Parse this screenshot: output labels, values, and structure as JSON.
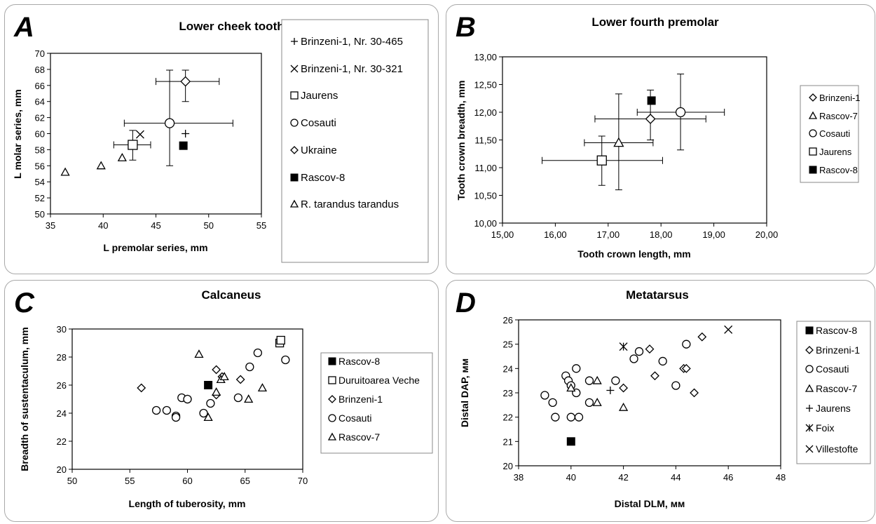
{
  "chart_data": [
    {
      "type": "scatter",
      "panel_letter": "A",
      "title": "Lower cheek tooth row",
      "xlabel": "L premolar series, mm",
      "ylabel": "L molar series, mm",
      "xlim": [
        35,
        55
      ],
      "ylim": [
        50,
        70
      ],
      "x_ticks": [
        "35",
        "40",
        "45",
        "50",
        "55"
      ],
      "y_ticks": [
        "50",
        "52",
        "54",
        "56",
        "58",
        "60",
        "62",
        "64",
        "66",
        "68",
        "70"
      ],
      "grid": false,
      "legend_position": "right",
      "series": [
        {
          "name": "Brinzeni-1, Nr. 30-465",
          "marker": "plus",
          "points": [
            [
              47.8,
              60.0
            ]
          ]
        },
        {
          "name": "Brinzeni-1, Nr. 30-321",
          "marker": "x",
          "points": [
            [
              43.5,
              59.9
            ]
          ]
        },
        {
          "name": "Jaurens",
          "marker": "square-open",
          "points": [
            [
              42.8,
              58.6
            ]
          ],
          "xerr": [
            [
              41.0,
              44.5
            ]
          ],
          "yerr": [
            [
              56.7,
              60.4
            ]
          ]
        },
        {
          "name": "Cosauti",
          "marker": "circle-open",
          "points": [
            [
              46.3,
              61.3
            ]
          ],
          "xerr": [
            [
              42.0,
              52.3
            ]
          ],
          "yerr": [
            [
              56.0,
              67.9
            ]
          ]
        },
        {
          "name": "Ukraine",
          "marker": "diamond-open",
          "points": [
            [
              47.8,
              66.5
            ]
          ],
          "xerr": [
            [
              45.0,
              51.0
            ]
          ],
          "yerr": [
            [
              64.0,
              67.9
            ]
          ]
        },
        {
          "name": "Rascov-8",
          "marker": "square-filled",
          "points": [
            [
              47.6,
              58.5
            ]
          ]
        },
        {
          "name": "R. tarandus tarandus",
          "marker": "triangle-open",
          "points": [
            [
              36.4,
              55.2
            ],
            [
              39.8,
              56.0
            ],
            [
              41.8,
              57.0
            ]
          ]
        }
      ]
    },
    {
      "type": "scatter",
      "panel_letter": "B",
      "title": "Lower fourth premolar",
      "xlabel": "Tooth crown length, mm",
      "ylabel": "Tooth crown breadth, mm",
      "xlim": [
        15,
        20
      ],
      "ylim": [
        10,
        13
      ],
      "x_ticks": [
        "15,00",
        "16,00",
        "17,00",
        "18,00",
        "19,00",
        "20,00"
      ],
      "y_ticks": [
        "10,00",
        "10,50",
        "11,00",
        "11,50",
        "12,00",
        "12,50",
        "13,00"
      ],
      "grid": false,
      "legend_position": "right",
      "series": [
        {
          "name": "Brinzeni-1",
          "marker": "diamond-open",
          "points": [
            [
              17.8,
              11.88
            ]
          ],
          "xerr": [
            [
              16.75,
              18.85
            ]
          ],
          "yerr": [
            [
              11.5,
              12.4
            ]
          ]
        },
        {
          "name": "Rascov-7",
          "marker": "triangle-open",
          "points": [
            [
              17.2,
              11.45
            ]
          ],
          "xerr": [
            [
              16.55,
              17.85
            ]
          ],
          "yerr": [
            [
              10.6,
              12.33
            ]
          ]
        },
        {
          "name": "Cosauti",
          "marker": "circle-open",
          "points": [
            [
              18.37,
              12.0
            ]
          ],
          "xerr": [
            [
              17.55,
              19.2
            ]
          ],
          "yerr": [
            [
              11.32,
              12.69
            ]
          ]
        },
        {
          "name": "Jaurens",
          "marker": "square-open",
          "points": [
            [
              16.88,
              11.13
            ]
          ],
          "xerr": [
            [
              15.75,
              18.03
            ]
          ],
          "yerr": [
            [
              10.68,
              11.57
            ]
          ]
        },
        {
          "name": "Rascov-8",
          "marker": "square-filled",
          "points": [
            [
              17.82,
              12.21
            ]
          ]
        }
      ]
    },
    {
      "type": "scatter",
      "panel_letter": "C",
      "title": "Calcaneus",
      "xlabel": "Length of tuberosity, mm",
      "ylabel": "Breadth of sustentaculum, mm",
      "xlim": [
        50,
        70
      ],
      "ylim": [
        20,
        30
      ],
      "x_ticks": [
        "50",
        "55",
        "60",
        "65",
        "70"
      ],
      "y_ticks": [
        "20",
        "22",
        "24",
        "26",
        "28",
        "30"
      ],
      "grid": false,
      "legend_position": "right",
      "series": [
        {
          "name": "Rascov-8",
          "marker": "square-filled",
          "points": [
            [
              61.8,
              26.0
            ]
          ]
        },
        {
          "name": "Duruitoarea Veche",
          "marker": "square-open",
          "points": [
            [
              68.0,
              29.0
            ],
            [
              68.1,
              29.2
            ]
          ]
        },
        {
          "name": "Brinzeni-1",
          "marker": "diamond-open",
          "points": [
            [
              56.0,
              25.8
            ],
            [
              60.0,
              25.0
            ],
            [
              62.5,
              25.3
            ],
            [
              62.5,
              27.1
            ],
            [
              63.0,
              26.6
            ],
            [
              64.6,
              26.4
            ]
          ]
        },
        {
          "name": "Cosauti",
          "marker": "circle-open",
          "points": [
            [
              57.3,
              24.2
            ],
            [
              58.2,
              24.2
            ],
            [
              59.0,
              23.8
            ],
            [
              59.0,
              23.7
            ],
            [
              59.5,
              25.1
            ],
            [
              60.0,
              25.0
            ],
            [
              61.4,
              24.0
            ],
            [
              62.0,
              24.7
            ],
            [
              64.4,
              25.1
            ],
            [
              65.4,
              27.3
            ],
            [
              66.1,
              28.3
            ],
            [
              68.5,
              27.8
            ]
          ]
        },
        {
          "name": "Rascov-7",
          "marker": "triangle-open",
          "points": [
            [
              61.0,
              28.2
            ],
            [
              61.8,
              23.7
            ],
            [
              62.5,
              25.5
            ],
            [
              62.9,
              26.4
            ],
            [
              63.2,
              26.6
            ],
            [
              65.3,
              25.0
            ],
            [
              66.5,
              25.8
            ]
          ]
        }
      ]
    },
    {
      "type": "scatter",
      "panel_letter": "D",
      "title": "Metatarsus",
      "xlabel": "Distal DLM, мм",
      "ylabel": "Distal DAP, мм",
      "xlim": [
        38,
        48
      ],
      "ylim": [
        20,
        26
      ],
      "x_ticks": [
        "38",
        "40",
        "42",
        "44",
        "46",
        "48"
      ],
      "y_ticks": [
        "20",
        "21",
        "22",
        "23",
        "24",
        "25",
        "26"
      ],
      "grid": false,
      "legend_position": "right",
      "series": [
        {
          "name": "Rascov-8",
          "marker": "square-filled",
          "points": [
            [
              40.0,
              21.0
            ]
          ]
        },
        {
          "name": "Brinzeni-1",
          "marker": "diamond-open",
          "points": [
            [
              42.0,
              23.2
            ],
            [
              43.0,
              24.8
            ],
            [
              43.2,
              23.7
            ],
            [
              44.3,
              24.0
            ],
            [
              44.4,
              24.0
            ],
            [
              44.7,
              23.0
            ],
            [
              45.0,
              25.3
            ]
          ]
        },
        {
          "name": "Cosauti",
          "marker": "circle-open",
          "points": [
            [
              39.0,
              22.9
            ],
            [
              39.3,
              22.6
            ],
            [
              39.4,
              22.0
            ],
            [
              39.8,
              23.7
            ],
            [
              39.9,
              23.5
            ],
            [
              40.0,
              23.3
            ],
            [
              40.0,
              22.0
            ],
            [
              40.2,
              24.0
            ],
            [
              40.2,
              23.0
            ],
            [
              40.3,
              22.0
            ],
            [
              40.7,
              23.5
            ],
            [
              40.7,
              22.6
            ],
            [
              41.7,
              23.5
            ],
            [
              42.4,
              24.4
            ],
            [
              42.6,
              24.7
            ],
            [
              43.5,
              24.3
            ],
            [
              44.0,
              23.3
            ],
            [
              44.4,
              25.0
            ]
          ]
        },
        {
          "name": "Rascov-7",
          "marker": "triangle-open",
          "points": [
            [
              40.0,
              23.2
            ],
            [
              41.0,
              23.5
            ],
            [
              41.0,
              22.6
            ],
            [
              42.0,
              22.4
            ]
          ]
        },
        {
          "name": "Jaurens",
          "marker": "plus",
          "points": [
            [
              41.5,
              23.1
            ]
          ]
        },
        {
          "name": "Foix",
          "marker": "asterisk",
          "points": [
            [
              42.0,
              24.9
            ]
          ]
        },
        {
          "name": "Villestofte",
          "marker": "x",
          "points": [
            [
              46.0,
              25.6
            ]
          ]
        }
      ]
    }
  ]
}
